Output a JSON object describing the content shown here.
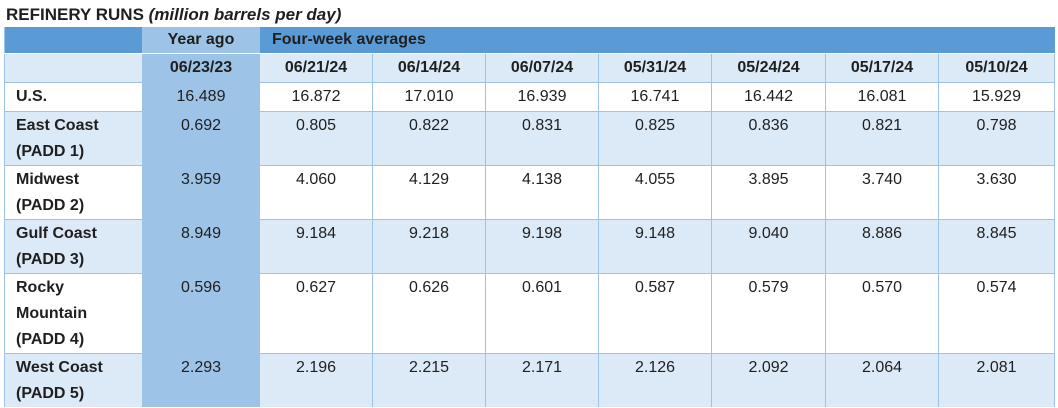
{
  "title": {
    "main": "REFINERY RUNS",
    "sub": "(million barrels per day)"
  },
  "header": {
    "year_ago": "Year ago",
    "four_week": "Four-week averages",
    "dates": [
      "06/23/23",
      "06/21/24",
      "06/14/24",
      "06/07/24",
      "05/31/24",
      "05/24/24",
      "05/17/24",
      "05/10/24"
    ]
  },
  "rows": [
    {
      "label": "U.S.",
      "values": [
        "16.489",
        "16.872",
        "17.010",
        "16.939",
        "16.741",
        "16.442",
        "16.081",
        "15.929"
      ]
    },
    {
      "label": "East Coast\n(PADD 1)",
      "values": [
        "0.692",
        "0.805",
        "0.822",
        "0.831",
        "0.825",
        "0.836",
        "0.821",
        "0.798"
      ]
    },
    {
      "label": "Midwest\n(PADD 2)",
      "values": [
        "3.959",
        "4.060",
        "4.129",
        "4.138",
        "4.055",
        "3.895",
        "3.740",
        "3.630"
      ]
    },
    {
      "label": "Gulf Coast\n(PADD 3)",
      "values": [
        "8.949",
        "9.184",
        "9.218",
        "9.198",
        "9.148",
        "9.040",
        "8.886",
        "8.845"
      ]
    },
    {
      "label": "Rocky\nMountain\n(PADD 4)",
      "values": [
        "0.596",
        "0.627",
        "0.626",
        "0.601",
        "0.587",
        "0.579",
        "0.570",
        "0.574"
      ]
    },
    {
      "label": "West Coast\n(PADD 5)",
      "values": [
        "2.293",
        "2.196",
        "2.215",
        "2.171",
        "2.126",
        "2.092",
        "2.064",
        "2.081"
      ]
    }
  ]
}
